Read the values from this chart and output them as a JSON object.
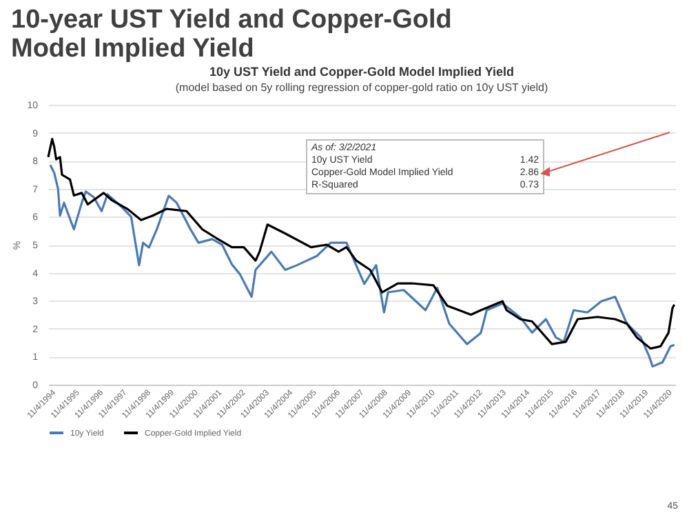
{
  "chart_data": {
    "type": "line",
    "title": "10-year UST Yield and Copper-Gold Model Implied Yield",
    "subtitle": "10y UST Yield and Copper-Gold Model Implied Yield",
    "ylabel": "%",
    "annotations": [
      "(model based on 5y rolling regression of copper-gold ratio on 10y UST yield)",
      "As of: 3/2/2021",
      "10y UST Yield",
      "1.42",
      "Copper-Gold Model Implied Yield",
      "2.86",
      "R-Squared",
      "0.73",
      "45"
    ],
    "series": [
      {
        "name": "10y Yield",
        "color": "#4a7ab5",
        "x": [
          "1994-11",
          "1995-01",
          "1995-03",
          "1995-04",
          "1995-06",
          "1995-11",
          "1996-03",
          "1996-05",
          "1996-09",
          "1997-01",
          "1997-04",
          "1997-11",
          "1998-04",
          "1998-08",
          "1998-10",
          "1999-01",
          "1999-05",
          "1999-11",
          "2000-03",
          "2000-10",
          "2001-02",
          "2001-09",
          "2002-02",
          "2002-07",
          "2002-11",
          "2003-05",
          "2003-07",
          "2004-03",
          "2004-10",
          "2005-04",
          "2006-02",
          "2006-09",
          "2007-05",
          "2008-02",
          "2008-08",
          "2008-12",
          "2009-02",
          "2009-10",
          "2010-09",
          "2011-03",
          "2011-09",
          "2012-06",
          "2013-01",
          "2013-04",
          "2013-12",
          "2014-09",
          "2015-03",
          "2015-10",
          "2016-03",
          "2016-07",
          "2016-12",
          "2017-07",
          "2018-02",
          "2018-09",
          "2019-03",
          "2019-10",
          "2020-02",
          "2020-04",
          "2020-09",
          "2021-01",
          "2021-03-02"
        ],
        "values": [
          7.85,
          7.57,
          7.0,
          6.04,
          6.5,
          5.55,
          6.5,
          6.9,
          6.7,
          6.2,
          6.8,
          6.36,
          6.0,
          4.27,
          5.07,
          4.9,
          5.55,
          6.75,
          6.5,
          5.55,
          5.07,
          5.2,
          5.0,
          4.3,
          3.95,
          3.14,
          4.1,
          4.75,
          4.1,
          4.27,
          4.6,
          5.07,
          5.07,
          3.6,
          4.27,
          2.58,
          3.3,
          3.38,
          2.66,
          3.46,
          2.18,
          1.45,
          1.85,
          2.66,
          2.9,
          2.4,
          1.86,
          2.34,
          1.69,
          1.53,
          2.66,
          2.58,
          2.98,
          3.14,
          2.18,
          1.69,
          1.05,
          0.65,
          0.8,
          1.37,
          1.42
        ]
      },
      {
        "name": "Copper-Gold Implied Yield",
        "color": "#000000",
        "x": [
          "1994-10",
          "1994-12",
          "1995-01",
          "1995-02",
          "1995-04",
          "1995-05",
          "1995-09",
          "1995-11",
          "1996-03",
          "1996-06",
          "1997-02",
          "1997-06",
          "1998-02",
          "1998-09",
          "1999-03",
          "1999-10",
          "2000-08",
          "2001-04",
          "2001-11",
          "2002-07",
          "2003-01",
          "2003-07",
          "2003-09",
          "2004-01",
          "2004-10",
          "2005-11",
          "2006-07",
          "2007-01",
          "2007-05",
          "2007-10",
          "2008-05",
          "2008-11",
          "2009-07",
          "2010-02",
          "2011-01",
          "2011-08",
          "2012-08",
          "2013-01",
          "2013-12",
          "2014-02",
          "2014-09",
          "2015-03",
          "2016-01",
          "2016-08",
          "2017-02",
          "2017-12",
          "2018-09",
          "2019-03",
          "2019-08",
          "2020-03",
          "2020-08",
          "2020-12",
          "2021-02",
          "2021-03-02"
        ],
        "values": [
          8.13,
          8.78,
          8.5,
          8.05,
          8.13,
          7.5,
          7.33,
          6.76,
          6.85,
          6.44,
          6.85,
          6.6,
          6.28,
          5.88,
          6.04,
          6.28,
          6.2,
          5.55,
          5.24,
          4.91,
          4.91,
          4.43,
          4.75,
          5.72,
          5.4,
          4.91,
          5.0,
          4.75,
          4.91,
          4.43,
          4.1,
          3.3,
          3.62,
          3.62,
          3.55,
          2.82,
          2.5,
          2.66,
          2.98,
          2.66,
          2.34,
          2.26,
          1.45,
          1.53,
          2.34,
          2.42,
          2.34,
          2.18,
          1.69,
          1.29,
          1.37,
          1.85,
          2.74,
          2.86
        ]
      }
    ],
    "xlim": [
      "1994-10-01",
      "2021-03-15"
    ],
    "xticks": [
      {
        "value": "1994-11-04",
        "label": "11/4/1994"
      },
      {
        "value": "1995-11-04",
        "label": "11/4/1995"
      },
      {
        "value": "1996-11-04",
        "label": "11/4/1996"
      },
      {
        "value": "1997-11-04",
        "label": "11/4/1997"
      },
      {
        "value": "1998-11-04",
        "label": "11/4/1998"
      },
      {
        "value": "1999-11-04",
        "label": "11/4/1999"
      },
      {
        "value": "2000-11-04",
        "label": "11/4/2000"
      },
      {
        "value": "2001-11-04",
        "label": "11/4/2001"
      },
      {
        "value": "2002-11-04",
        "label": "11/4/2002"
      },
      {
        "value": "2003-11-04",
        "label": "11/4/2003"
      },
      {
        "value": "2004-11-04",
        "label": "11/4/2004"
      },
      {
        "value": "2005-11-04",
        "label": "11/4/2005"
      },
      {
        "value": "2006-11-04",
        "label": "11/4/2006"
      },
      {
        "value": "2007-11-04",
        "label": "11/4/2007"
      },
      {
        "value": "2008-11-04",
        "label": "11/4/2008"
      },
      {
        "value": "2009-11-04",
        "label": "11/4/2009"
      },
      {
        "value": "2010-11-04",
        "label": "11/4/2010"
      },
      {
        "value": "2011-11-04",
        "label": "11/4/2011"
      },
      {
        "value": "2012-11-04",
        "label": "11/4/2012"
      },
      {
        "value": "2013-11-04",
        "label": "11/4/2013"
      },
      {
        "value": "2014-11-04",
        "label": "11/4/2014"
      },
      {
        "value": "2015-11-04",
        "label": "11/4/2015"
      },
      {
        "value": "2016-11-04",
        "label": "11/4/2016"
      },
      {
        "value": "2017-11-04",
        "label": "11/4/2017"
      },
      {
        "value": "2018-11-04",
        "label": "11/4/2018"
      },
      {
        "value": "2019-11-04",
        "label": "11/4/2019"
      },
      {
        "value": "2020-11-04",
        "label": "11/4/2020"
      }
    ],
    "ylim": [
      0,
      10
    ],
    "yticks": [
      0,
      1,
      2,
      3,
      4,
      5,
      6,
      7,
      8,
      9,
      10
    ],
    "grid": "y",
    "legend": "bottom",
    "line_style": "solid"
  }
}
